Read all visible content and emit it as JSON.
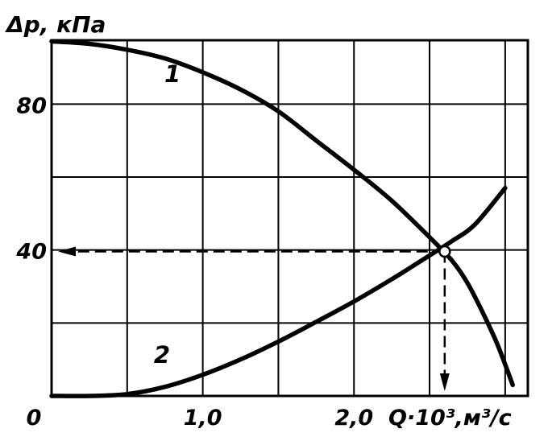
{
  "chart_data": {
    "type": "line",
    "ylabel": "Δp, кПа",
    "xlabel": "Q·10³,м³/с",
    "x_ticks": [
      {
        "v": 0,
        "label": "0"
      },
      {
        "v": 1.0,
        "label": "1,0"
      },
      {
        "v": 2.0,
        "label": "2,0"
      }
    ],
    "y_ticks": [
      {
        "v": 40,
        "label": "40"
      },
      {
        "v": 80,
        "label": "80"
      }
    ],
    "xlim": [
      0,
      3.15
    ],
    "ylim": [
      0,
      97.5
    ],
    "grid": true,
    "grid_x_step": 0.5,
    "grid_y_step": 20,
    "series": [
      {
        "name": "1",
        "x": [
          0,
          0.25,
          0.5,
          0.75,
          1.0,
          1.25,
          1.5,
          1.75,
          2.0,
          2.25,
          2.5,
          2.65,
          2.75,
          2.85,
          2.95,
          3.05
        ],
        "y": [
          97.2,
          96.5,
          94.9,
          92.5,
          88.7,
          84.0,
          78.0,
          70.0,
          62.0,
          53.5,
          43.5,
          37.0,
          31.0,
          23.0,
          14.0,
          3.0
        ]
      },
      {
        "name": "2",
        "x": [
          0,
          0.25,
          0.5,
          0.75,
          1.0,
          1.25,
          1.5,
          1.75,
          2.0,
          2.25,
          2.5,
          2.65,
          2.8,
          3.0
        ],
        "y": [
          0,
          0,
          0.5,
          2.5,
          5.8,
          10.0,
          14.9,
          20.3,
          25.9,
          32.0,
          38.5,
          42.5,
          47.0,
          57.0
        ]
      }
    ],
    "series_label_points": [
      {
        "series": 0,
        "x": 0.8,
        "y": 86
      },
      {
        "series": 1,
        "x": 0.73,
        "y": 9
      }
    ],
    "operating_point": {
      "x": 2.6,
      "y": 39.6
    }
  }
}
